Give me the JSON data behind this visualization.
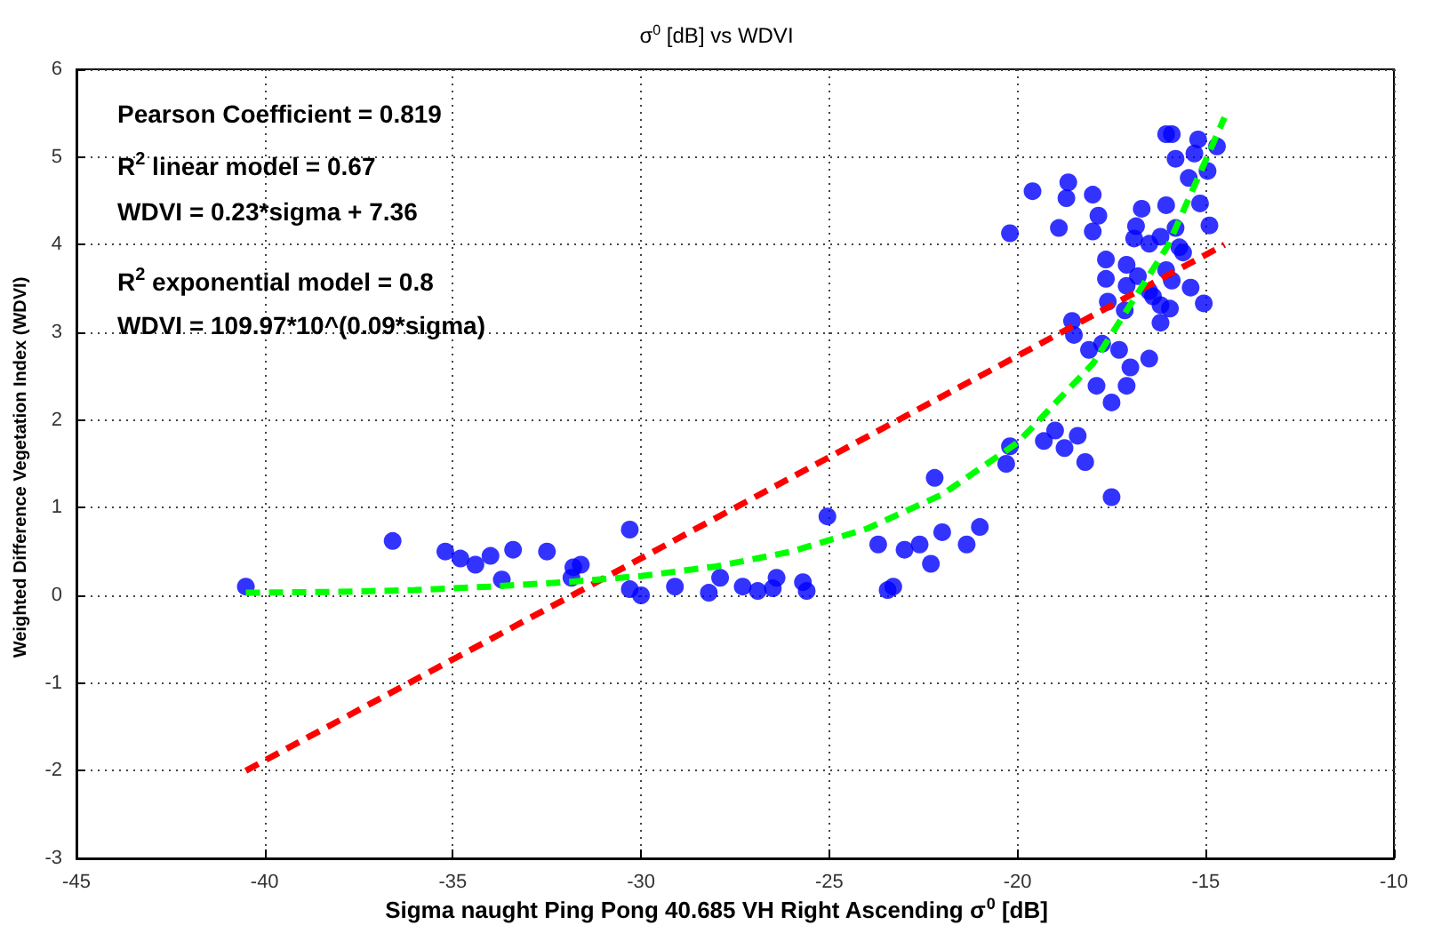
{
  "chart_data": {
    "type": "scatter",
    "title": "σ$^{0}$ [dB] vs WDVI",
    "xlabel": "Sigma naught Ping Pong 40.685 VH Right Ascending σ$^{0}$ [dB]",
    "ylabel": "Weighted Difference Vegetation Index (WDVI)",
    "annotations": [
      "Pearson Coefficient = 0.819",
      "R$^{2}$ linear model = 0.67",
      "WDVI = 0.23*sigma + 7.36",
      "R$^{2}$ exponential model = 0.8",
      "WDVI = 109.97*10^(0.09*sigma)"
    ],
    "xlim": [
      -45,
      -10
    ],
    "xticks": [
      -45,
      -40,
      -35,
      -30,
      -25,
      -20,
      -15,
      -10
    ],
    "ylim": [
      -3,
      6
    ],
    "yticks": [
      -3,
      -2,
      -1,
      0,
      1,
      2,
      3,
      4,
      5,
      6
    ],
    "grid": true,
    "legend": false,
    "series": [
      {
        "type": "scatter",
        "color": "#0000ff",
        "marker": "circle",
        "x": [
          -40.5,
          -36.6,
          -35.2,
          -34.8,
          -34.4,
          -34.0,
          -33.7,
          -33.4,
          -32.5,
          -31.8,
          -31.6,
          -31.85,
          -30.3,
          -30.3,
          -30.0,
          -29.1,
          -28.2,
          -27.9,
          -27.3,
          -26.9,
          -26.4,
          -26.5,
          -25.7,
          -25.6,
          -25.05,
          -23.7,
          -23.45,
          -23.3,
          -23.0,
          -22.6,
          -22.3,
          -22.0,
          -22.2,
          -21.35,
          -21.0,
          -20.3,
          -20.2,
          -19.3,
          -19.0,
          -18.75,
          -18.4,
          -18.2,
          -17.5,
          -17.9,
          -17.5,
          -17.1,
          -17.0,
          -16.5,
          -17.3,
          -18.1,
          -17.75,
          -18.5,
          -18.55,
          -20.2,
          -19.6,
          -18.65,
          -18.7,
          -18.0,
          -17.85,
          -18.9,
          -18.0,
          -16.7,
          -16.05,
          -16.85,
          -16.9,
          -16.5,
          -16.2,
          -15.8,
          -15.7,
          -15.6,
          -17.65,
          -17.1,
          -17.65,
          -17.1,
          -16.8,
          -16.05,
          -15.9,
          -16.5,
          -16.4,
          -17.6,
          -17.15,
          -16.2,
          -15.95,
          -16.2,
          -15.4,
          -15.05,
          -16.05,
          -15.9,
          -15.2,
          -15.8,
          -14.7,
          -15.45,
          -14.95,
          -15.15,
          -14.9,
          -15.3
        ],
        "values": [
          0.1,
          0.62,
          0.5,
          0.42,
          0.35,
          0.45,
          0.18,
          0.52,
          0.5,
          0.32,
          0.35,
          0.2,
          0.75,
          0.07,
          0.0,
          0.1,
          0.03,
          0.2,
          0.1,
          0.05,
          0.2,
          0.08,
          0.15,
          0.05,
          0.9,
          0.58,
          0.06,
          0.1,
          0.52,
          0.58,
          0.36,
          0.72,
          1.34,
          0.58,
          0.78,
          1.5,
          1.7,
          1.76,
          1.88,
          1.68,
          1.82,
          1.52,
          1.12,
          2.39,
          2.2,
          2.39,
          2.6,
          2.7,
          2.8,
          2.8,
          2.87,
          2.97,
          3.13,
          4.13,
          4.61,
          4.71,
          4.53,
          4.57,
          4.33,
          4.19,
          4.15,
          4.41,
          4.45,
          4.21,
          4.07,
          4.01,
          4.09,
          4.19,
          3.97,
          3.91,
          3.83,
          3.77,
          3.61,
          3.53,
          3.64,
          3.71,
          3.59,
          3.47,
          3.41,
          3.35,
          3.25,
          3.31,
          3.27,
          3.11,
          3.51,
          3.33,
          5.26,
          5.26,
          5.2,
          4.98,
          5.12,
          4.76,
          4.84,
          4.47,
          4.22,
          5.04
        ]
      },
      {
        "type": "line",
        "color": "#ff0000",
        "marker": "none",
        "line_style": "dashed",
        "x": [
          -40.5,
          -14.5
        ],
        "values": [
          -2.0,
          4.0
        ]
      },
      {
        "type": "line",
        "color": "#00ff00",
        "marker": "none",
        "line_style": "dashed",
        "x": [
          -40.5,
          -38,
          -36,
          -34,
          -32,
          -30,
          -28,
          -26,
          -24,
          -22,
          -20,
          -18,
          -16,
          -14.5
        ],
        "values": [
          0.03,
          0.04,
          0.06,
          0.1,
          0.15,
          0.22,
          0.33,
          0.5,
          0.76,
          1.15,
          1.74,
          2.64,
          3.99,
          5.45
        ]
      }
    ]
  }
}
